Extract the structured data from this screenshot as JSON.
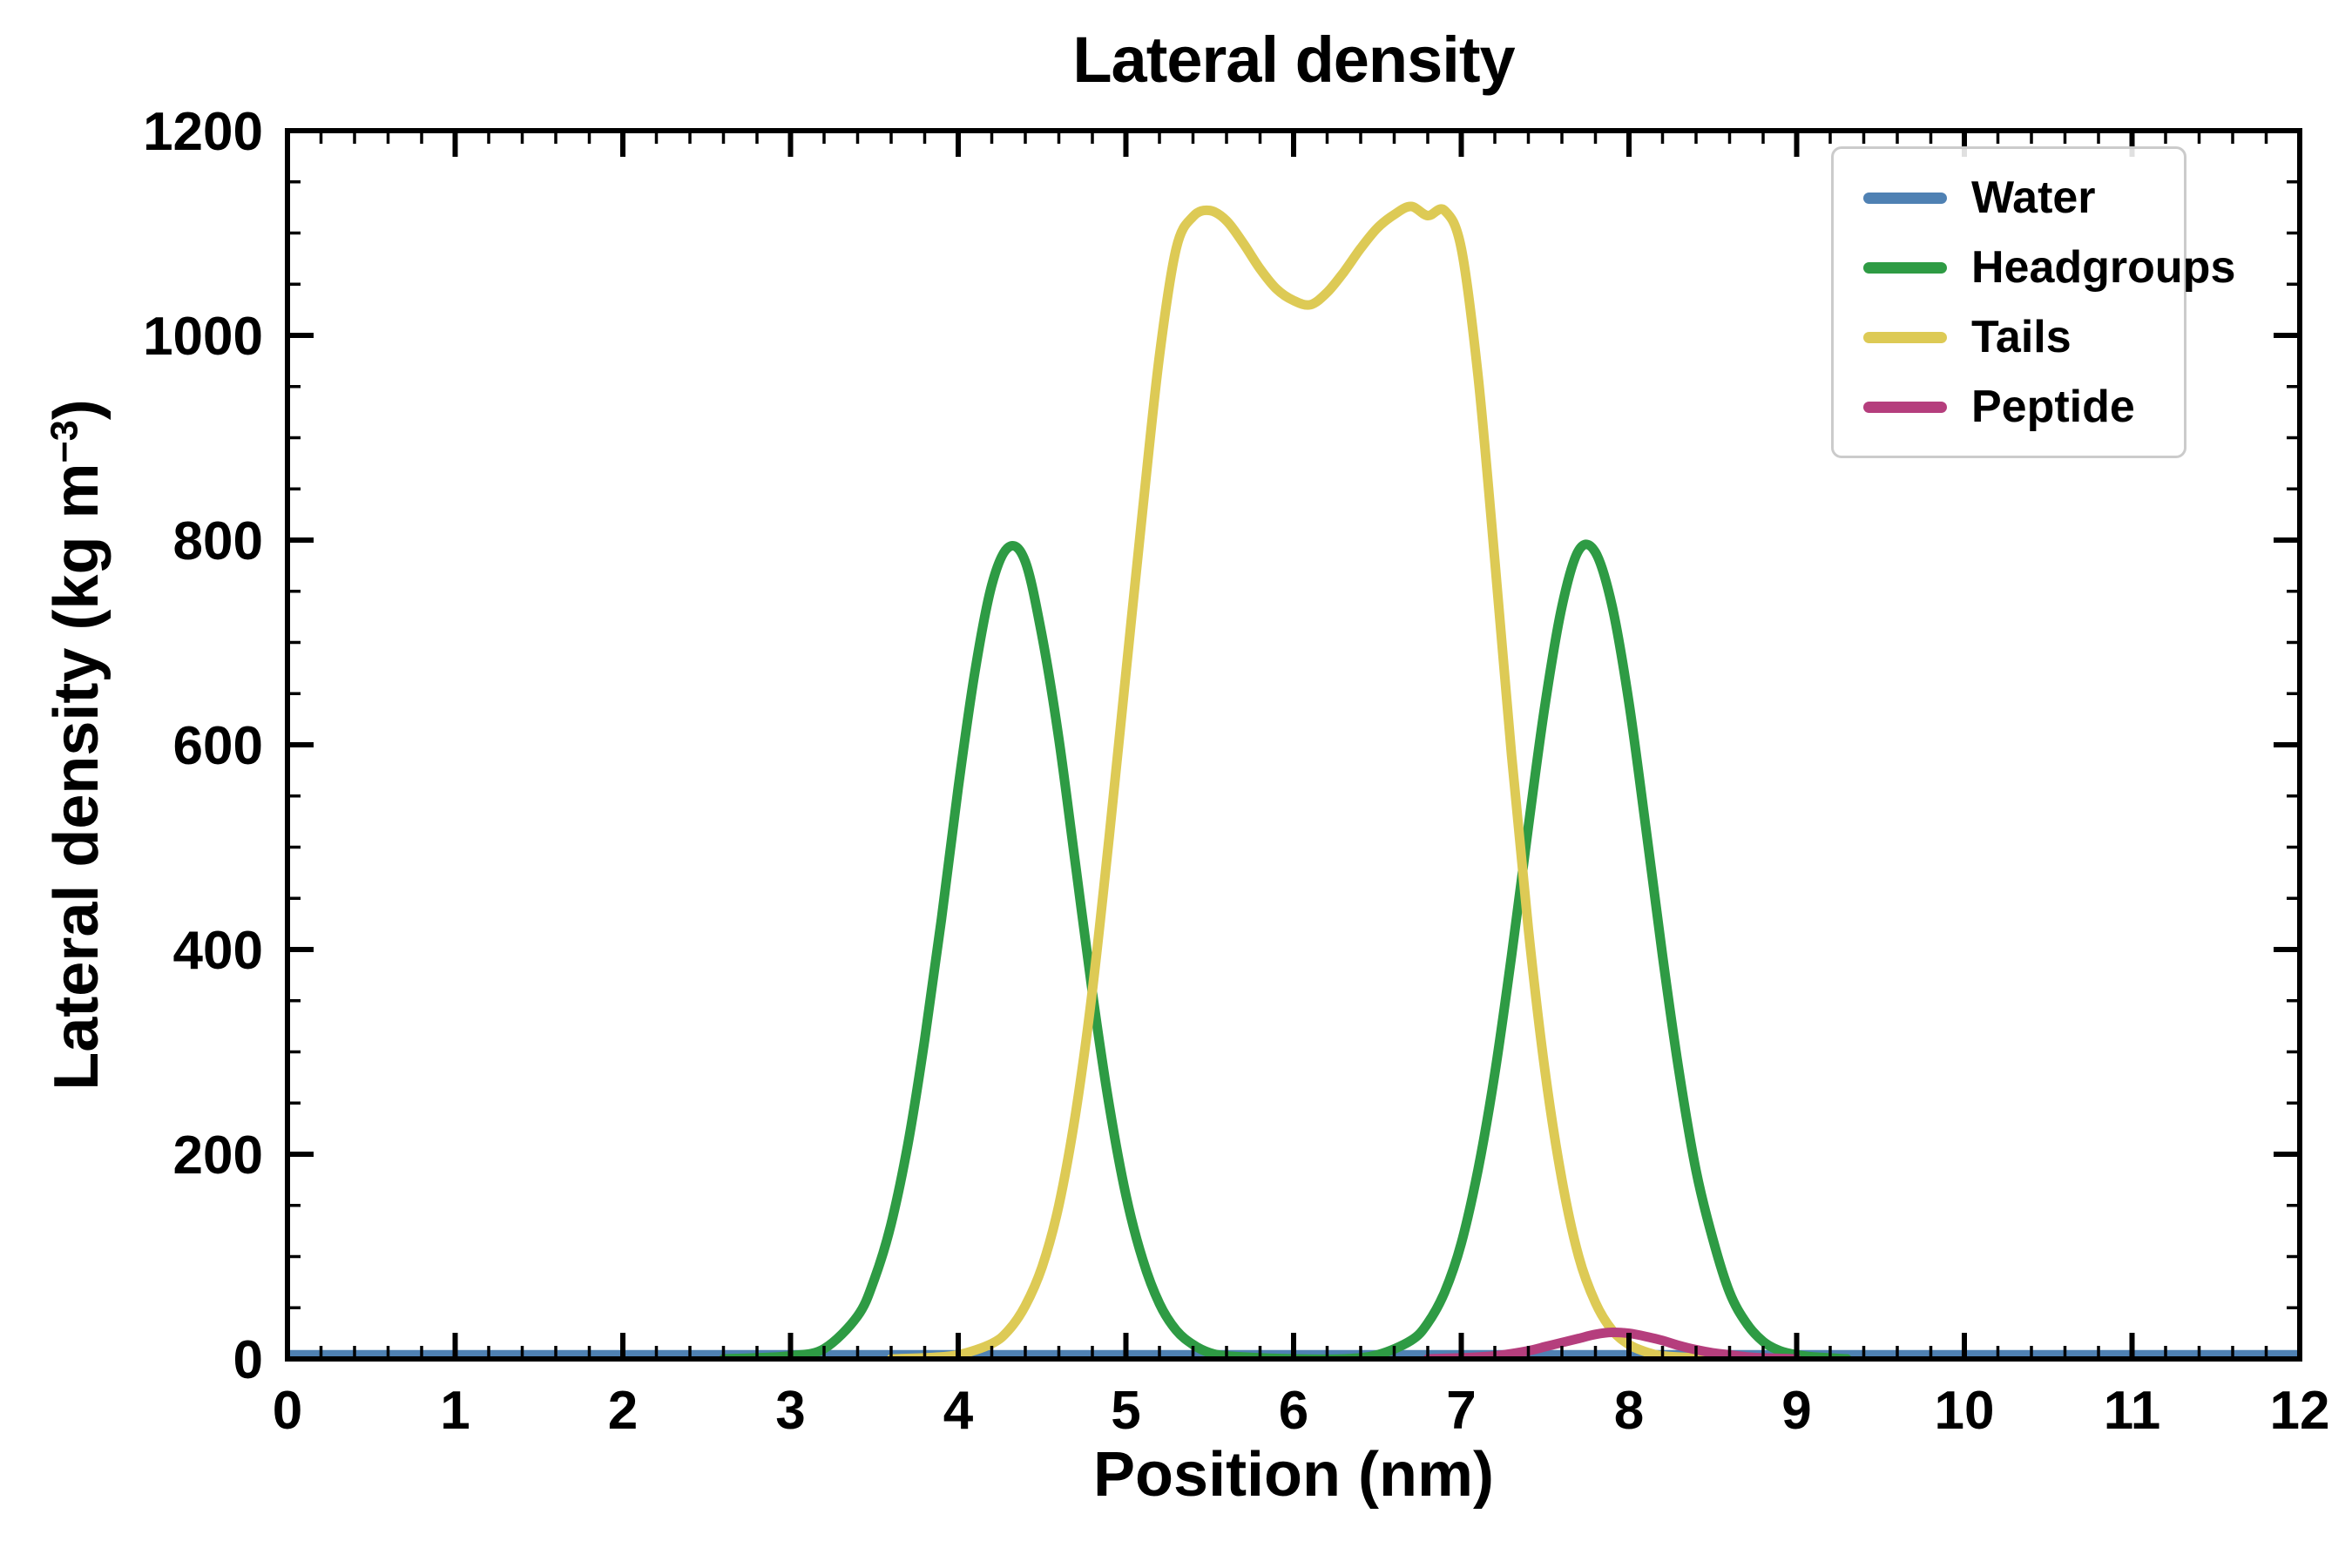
{
  "figure": {
    "title": "Lateral density",
    "xlabel": "Position (nm)",
    "ylabel_prefix": "Lateral density (kg m",
    "ylabel_sup": "−3",
    "ylabel_suffix": ")"
  },
  "chart_data": {
    "type": "line",
    "title": "Lateral density",
    "xlabel": "Position (nm)",
    "ylabel": "Lateral density (kg m⁻³)",
    "xlim": [
      0,
      12
    ],
    "ylim": [
      0,
      1200
    ],
    "xticks": [
      0,
      1,
      2,
      3,
      4,
      5,
      6,
      7,
      8,
      9,
      10,
      11,
      12
    ],
    "yticks": [
      0,
      200,
      400,
      600,
      800,
      1000,
      1200
    ],
    "x_minor_step": 0.2,
    "y_minor_step": 50,
    "grid": false,
    "legend_position": "upper right",
    "series": [
      {
        "name": "Water",
        "color": "#4f81b3",
        "points": [
          [
            0,
            4
          ],
          [
            12,
            4
          ]
        ]
      },
      {
        "name": "Headgroups",
        "color": "#2e9b44",
        "points": [
          [
            2.6,
            0
          ],
          [
            2.8,
            1
          ],
          [
            3.0,
            3
          ],
          [
            3.2,
            10
          ],
          [
            3.4,
            42
          ],
          [
            3.5,
            78
          ],
          [
            3.6,
            132
          ],
          [
            3.7,
            210
          ],
          [
            3.8,
            312
          ],
          [
            3.9,
            430
          ],
          [
            4.0,
            558
          ],
          [
            4.1,
            672
          ],
          [
            4.2,
            756
          ],
          [
            4.3,
            793
          ],
          [
            4.4,
            779
          ],
          [
            4.5,
            706
          ],
          [
            4.6,
            606
          ],
          [
            4.7,
            482
          ],
          [
            4.8,
            358
          ],
          [
            4.9,
            248
          ],
          [
            5.0,
            160
          ],
          [
            5.1,
            97
          ],
          [
            5.2,
            54
          ],
          [
            5.3,
            28
          ],
          [
            5.4,
            14
          ],
          [
            5.5,
            6
          ],
          [
            5.6,
            3
          ],
          [
            5.8,
            1
          ],
          [
            6.0,
            0
          ],
          [
            6.3,
            0
          ],
          [
            6.5,
            4
          ],
          [
            6.7,
            18
          ],
          [
            6.8,
            35
          ],
          [
            6.9,
            65
          ],
          [
            7.0,
            113
          ],
          [
            7.1,
            185
          ],
          [
            7.2,
            279
          ],
          [
            7.3,
            394
          ],
          [
            7.4,
            520
          ],
          [
            7.5,
            640
          ],
          [
            7.6,
            735
          ],
          [
            7.7,
            790
          ],
          [
            7.8,
            788
          ],
          [
            7.9,
            735
          ],
          [
            8.0,
            641
          ],
          [
            8.1,
            520
          ],
          [
            8.2,
            394
          ],
          [
            8.3,
            279
          ],
          [
            8.4,
            184
          ],
          [
            8.5,
            117
          ],
          [
            8.6,
            65
          ],
          [
            8.7,
            35
          ],
          [
            8.8,
            17
          ],
          [
            8.9,
            8
          ],
          [
            9.0,
            4
          ],
          [
            9.1,
            2
          ],
          [
            9.3,
            0
          ]
        ]
      },
      {
        "name": "Tails",
        "color": "#ddca55",
        "points": [
          [
            3.6,
            0
          ],
          [
            3.8,
            1
          ],
          [
            4.0,
            4
          ],
          [
            4.2,
            15
          ],
          [
            4.3,
            28
          ],
          [
            4.4,
            52
          ],
          [
            4.5,
            90
          ],
          [
            4.6,
            150
          ],
          [
            4.7,
            240
          ],
          [
            4.8,
            360
          ],
          [
            4.9,
            510
          ],
          [
            5.0,
            670
          ],
          [
            5.1,
            830
          ],
          [
            5.2,
            980
          ],
          [
            5.3,
            1085
          ],
          [
            5.4,
            1116
          ],
          [
            5.5,
            1122
          ],
          [
            5.6,
            1112
          ],
          [
            5.7,
            1090
          ],
          [
            5.8,
            1065
          ],
          [
            5.9,
            1045
          ],
          [
            6.0,
            1034
          ],
          [
            6.1,
            1030
          ],
          [
            6.2,
            1042
          ],
          [
            6.3,
            1062
          ],
          [
            6.4,
            1085
          ],
          [
            6.5,
            1105
          ],
          [
            6.6,
            1118
          ],
          [
            6.7,
            1126
          ],
          [
            6.8,
            1117
          ],
          [
            6.9,
            1122
          ],
          [
            7.0,
            1085
          ],
          [
            7.1,
            960
          ],
          [
            7.2,
            780
          ],
          [
            7.3,
            590
          ],
          [
            7.4,
            420
          ],
          [
            7.5,
            280
          ],
          [
            7.6,
            175
          ],
          [
            7.7,
            100
          ],
          [
            7.8,
            55
          ],
          [
            7.9,
            28
          ],
          [
            8.0,
            14
          ],
          [
            8.1,
            7
          ],
          [
            8.2,
            3
          ],
          [
            8.4,
            1
          ],
          [
            8.6,
            0
          ]
        ]
      },
      {
        "name": "Peptide",
        "color": "#b53e7d",
        "points": [
          [
            6.8,
            0
          ],
          [
            7.0,
            1
          ],
          [
            7.2,
            3
          ],
          [
            7.4,
            8
          ],
          [
            7.5,
            12
          ],
          [
            7.6,
            16
          ],
          [
            7.7,
            20
          ],
          [
            7.8,
            24
          ],
          [
            7.9,
            26
          ],
          [
            8.0,
            25
          ],
          [
            8.1,
            22
          ],
          [
            8.2,
            18
          ],
          [
            8.3,
            13
          ],
          [
            8.4,
            9
          ],
          [
            8.5,
            6
          ],
          [
            8.6,
            4
          ],
          [
            8.7,
            2
          ],
          [
            8.8,
            1
          ],
          [
            9.0,
            0
          ]
        ]
      }
    ]
  }
}
